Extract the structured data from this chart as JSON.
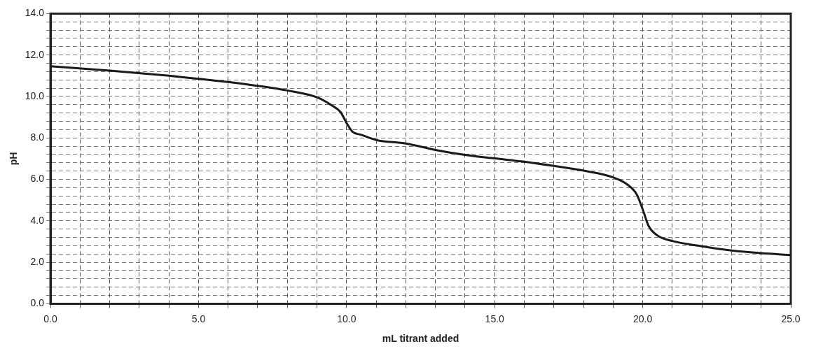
{
  "chart_data": {
    "type": "line",
    "xlabel": "mL titrant added",
    "ylabel": "pH",
    "x": [
      0,
      2,
      4,
      5,
      6,
      8,
      9,
      9.5,
      9.8,
      10,
      10.2,
      10.5,
      11,
      12,
      13,
      14,
      15,
      16,
      17,
      18,
      19,
      19.5,
      19.8,
      20,
      20.2,
      20.5,
      21,
      22,
      23,
      24,
      25
    ],
    "series": [
      {
        "color": "#1a1a1a",
        "values": [
          11.46,
          11.25,
          11.0,
          10.85,
          10.7,
          10.29,
          9.96,
          9.57,
          9.24,
          8.72,
          8.3,
          8.15,
          7.9,
          7.73,
          7.42,
          7.18,
          7.01,
          6.85,
          6.65,
          6.42,
          6.1,
          5.73,
          5.27,
          4.55,
          3.75,
          3.29,
          3.03,
          2.77,
          2.57,
          2.44,
          2.35
        ]
      }
    ],
    "xlim": [
      0,
      25
    ],
    "ylim": [
      0,
      14
    ],
    "xticks": [
      {
        "value": 0,
        "label": "0.0"
      },
      {
        "value": 1,
        "label": null
      },
      {
        "value": 2,
        "label": null
      },
      {
        "value": 3,
        "label": null
      },
      {
        "value": 4,
        "label": null
      },
      {
        "value": 5,
        "label": "5.0"
      },
      {
        "value": 6,
        "label": null
      },
      {
        "value": 7,
        "label": null
      },
      {
        "value": 8,
        "label": null
      },
      {
        "value": 9,
        "label": null
      },
      {
        "value": 10,
        "label": "10.0"
      },
      {
        "value": 11,
        "label": null
      },
      {
        "value": 12,
        "label": null
      },
      {
        "value": 13,
        "label": null
      },
      {
        "value": 14,
        "label": null
      },
      {
        "value": 15,
        "label": "15.0"
      },
      {
        "value": 16,
        "label": null
      },
      {
        "value": 17,
        "label": null
      },
      {
        "value": 18,
        "label": null
      },
      {
        "value": 19,
        "label": null
      },
      {
        "value": 20,
        "label": "20.0"
      },
      {
        "value": 21,
        "label": null
      },
      {
        "value": 22,
        "label": null
      },
      {
        "value": 23,
        "label": null
      },
      {
        "value": 24,
        "label": null
      },
      {
        "value": 25,
        "label": "25.0"
      }
    ],
    "yticks": [
      {
        "value": 0,
        "label": "0.0"
      },
      {
        "value": 0.4,
        "label": null
      },
      {
        "value": 0.8,
        "label": null
      },
      {
        "value": 1.2,
        "label": null
      },
      {
        "value": 1.6,
        "label": null
      },
      {
        "value": 2,
        "label": "2.0"
      },
      {
        "value": 2.4,
        "label": null
      },
      {
        "value": 2.8,
        "label": null
      },
      {
        "value": 3.2,
        "label": null
      },
      {
        "value": 3.6,
        "label": null
      },
      {
        "value": 4,
        "label": "4.0"
      },
      {
        "value": 4.4,
        "label": null
      },
      {
        "value": 4.8,
        "label": null
      },
      {
        "value": 5.2,
        "label": null
      },
      {
        "value": 5.6,
        "label": null
      },
      {
        "value": 6,
        "label": "6.0"
      },
      {
        "value": 6.4,
        "label": null
      },
      {
        "value": 6.8,
        "label": null
      },
      {
        "value": 7.2,
        "label": null
      },
      {
        "value": 7.6,
        "label": null
      },
      {
        "value": 8,
        "label": "8.0"
      },
      {
        "value": 8.4,
        "label": null
      },
      {
        "value": 8.8,
        "label": null
      },
      {
        "value": 9.2,
        "label": null
      },
      {
        "value": 9.6,
        "label": null
      },
      {
        "value": 10,
        "label": "10.0"
      },
      {
        "value": 10.4,
        "label": null
      },
      {
        "value": 10.8,
        "label": null
      },
      {
        "value": 11.2,
        "label": null
      },
      {
        "value": 11.6,
        "label": null
      },
      {
        "value": 12,
        "label": "12.0"
      },
      {
        "value": 12.4,
        "label": null
      },
      {
        "value": 12.8,
        "label": null
      },
      {
        "value": 13.2,
        "label": null
      },
      {
        "value": 13.6,
        "label": null
      },
      {
        "value": 14,
        "label": "14.0"
      }
    ],
    "grid": true,
    "legend": false,
    "marker": "none",
    "line_style": "solid"
  }
}
